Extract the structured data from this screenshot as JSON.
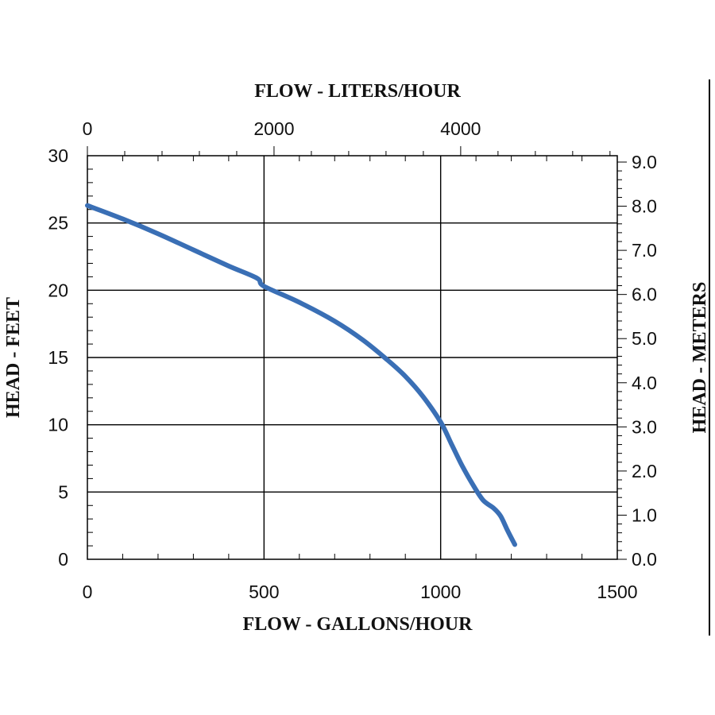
{
  "chart_data": {
    "type": "line",
    "title": "",
    "xlabel": "FLOW - GALLONS/HOUR",
    "x2label": "FLOW - LITERS/HOUR",
    "ylabel": "HEAD - FEET",
    "y2label": "HEAD - METERS",
    "xlim": [
      0,
      1500
    ],
    "ylim": [
      0,
      30
    ],
    "x_ticks": [
      "0",
      "500",
      "1000",
      "1500"
    ],
    "y_ticks": [
      "0",
      "5",
      "10",
      "15",
      "20",
      "25",
      "30"
    ],
    "x2_ticks": [
      {
        "value": 0,
        "label": "0"
      },
      {
        "value": 2000,
        "label": "2000"
      },
      {
        "value": 4000,
        "label": "4000"
      }
    ],
    "y2_ticks": [
      "0.0",
      "1.0",
      "2.0",
      "3.0",
      "4.0",
      "5.0",
      "6.0",
      "7.0",
      "8.0",
      "9.0"
    ],
    "grid": true,
    "line_color": "#3a6fb5",
    "series": [
      {
        "x": [
          0,
          100,
          200,
          300,
          400,
          480,
          500,
          600,
          700,
          780,
          850,
          900,
          950,
          1000,
          1030,
          1060,
          1090,
          1120,
          1150,
          1170,
          1190,
          1210
        ],
        "y": [
          26.3,
          25.3,
          24.2,
          23.0,
          21.8,
          20.9,
          20.3,
          19.1,
          17.7,
          16.3,
          14.8,
          13.6,
          12.1,
          10.2,
          8.6,
          7.0,
          5.6,
          4.4,
          3.8,
          3.2,
          2.1,
          1.1
        ]
      }
    ]
  }
}
